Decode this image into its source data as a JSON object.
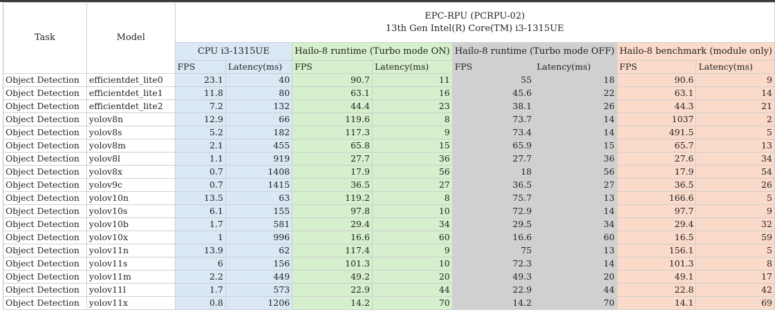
{
  "header": {
    "task": "Task",
    "model": "Model",
    "title_line1": "EPC-RPU (PCRPU-02)",
    "title_line2": "13th Gen Intel(R) Core(TM) i3-1315UE",
    "groups": [
      "CPU i3-1315UE",
      "Hailo-8 runtime (Turbo mode ON)",
      "Hailo-8 runtime (Turbo mode OFF)",
      "Hailo-8 benchmark (module only)"
    ],
    "fps": "FPS",
    "latency": "Latency(ms)"
  },
  "rows": [
    {
      "task": "Object Detection",
      "model": "efficientdet_lite0",
      "v": [
        "23.1",
        "40",
        "90.7",
        "11",
        "55",
        "18",
        "90.6",
        "9"
      ]
    },
    {
      "task": "Object Detection",
      "model": "efficientdet_lite1",
      "v": [
        "11.8",
        "80",
        "63.1",
        "16",
        "45.6",
        "22",
        "63.1",
        "14"
      ]
    },
    {
      "task": "Object Detection",
      "model": "efficientdet_lite2",
      "v": [
        "7.2",
        "132",
        "44.4",
        "23",
        "38.1",
        "26",
        "44.3",
        "21"
      ]
    },
    {
      "task": "Object Detection",
      "model": "yolov8n",
      "v": [
        "12.9",
        "66",
        "119.6",
        "8",
        "73.7",
        "14",
        "1037",
        "2"
      ]
    },
    {
      "task": "Object Detection",
      "model": "yolov8s",
      "v": [
        "5.2",
        "182",
        "117.3",
        "9",
        "73.4",
        "14",
        "491.5",
        "5"
      ]
    },
    {
      "task": "Object Detection",
      "model": "yolov8m",
      "v": [
        "2.1",
        "455",
        "65.8",
        "15",
        "65.9",
        "15",
        "65.7",
        "13"
      ]
    },
    {
      "task": "Object Detection",
      "model": "yolov8l",
      "v": [
        "1.1",
        "919",
        "27.7",
        "36",
        "27.7",
        "36",
        "27.6",
        "34"
      ]
    },
    {
      "task": "Object Detection",
      "model": "yolov8x",
      "v": [
        "0.7",
        "1408",
        "17.9",
        "56",
        "18",
        "56",
        "17.9",
        "54"
      ]
    },
    {
      "task": "Object Detection",
      "model": "yolov9c",
      "v": [
        "0.7",
        "1415",
        "36.5",
        "27",
        "36.5",
        "27",
        "36.5",
        "26"
      ]
    },
    {
      "task": "Object Detection",
      "model": "yolov10n",
      "v": [
        "13.5",
        "63",
        "119.2",
        "8",
        "75.7",
        "13",
        "166.6",
        "5"
      ]
    },
    {
      "task": "Object Detection",
      "model": "yolov10s",
      "v": [
        "6.1",
        "155",
        "97.8",
        "10",
        "72.9",
        "14",
        "97.7",
        "9"
      ]
    },
    {
      "task": "Object Detection",
      "model": "yolov10b",
      "v": [
        "1.7",
        "581",
        "29.4",
        "34",
        "29.5",
        "34",
        "29.4",
        "32"
      ]
    },
    {
      "task": "Object Detection",
      "model": "yolov10x",
      "v": [
        "1",
        "996",
        "16.6",
        "60",
        "16.6",
        "60",
        "16.5",
        "59"
      ]
    },
    {
      "task": "Object Detection",
      "model": "yolov11n",
      "v": [
        "13.9",
        "62",
        "117.4",
        "9",
        "75",
        "13",
        "156.1",
        "5"
      ]
    },
    {
      "task": "Object Detection",
      "model": "yolov11s",
      "v": [
        "6",
        "156",
        "101.3",
        "10",
        "72.3",
        "14",
        "101.3",
        "8"
      ]
    },
    {
      "task": "Object Detection",
      "model": "yolov11m",
      "v": [
        "2.2",
        "449",
        "49.2",
        "20",
        "49.3",
        "20",
        "49.1",
        "17"
      ]
    },
    {
      "task": "Object Detection",
      "model": "yolov11l",
      "v": [
        "1.7",
        "573",
        "22.9",
        "44",
        "22.9",
        "44",
        "22.8",
        "42"
      ]
    },
    {
      "task": "Object Detection",
      "model": "yolov11x",
      "v": [
        "0.8",
        "1206",
        "14.2",
        "70",
        "14.2",
        "70",
        "14.1",
        "69"
      ]
    }
  ],
  "colors": {
    "cpu": "#dae7f5",
    "turbo_on": "#d6efcc",
    "turbo_off": "#d0d0d0",
    "benchmark": "#fadac8",
    "gridline": "#cfcfcf"
  }
}
